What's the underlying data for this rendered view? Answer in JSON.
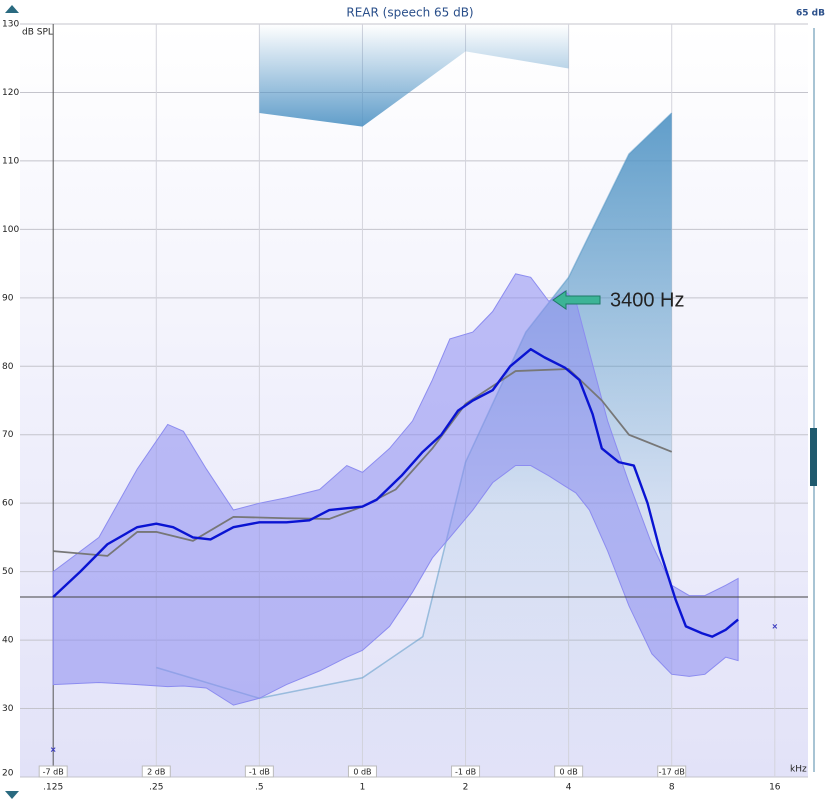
{
  "chart_data": {
    "type": "line",
    "title": "REAR (speech 65 dB)",
    "level_label": "65 dB",
    "y_label": "dB SPL",
    "x_label": "kHz",
    "log_x": true,
    "grid": true,
    "xlim": [
      0.1,
      20
    ],
    "xticks": [
      {
        "value": 0.125,
        "label": ".125"
      },
      {
        "value": 0.25,
        "label": ".25"
      },
      {
        "value": 0.5,
        "label": ".5"
      },
      1,
      2,
      4,
      8,
      16
    ],
    "ylim": [
      20,
      130
    ],
    "yticks": [
      20,
      30,
      40,
      50,
      60,
      70,
      80,
      90,
      100,
      110,
      120,
      130
    ],
    "gain_labels": [
      "-7 dB",
      "2 dB",
      "-1 dB",
      "0 dB",
      "-1 dB",
      "0 dB",
      "-17 dB"
    ],
    "band": {
      "color": "#8c8cf0",
      "x": [
        0.125,
        0.17,
        0.22,
        0.27,
        0.3,
        0.35,
        0.42,
        0.5,
        0.6,
        0.75,
        0.9,
        1,
        1.2,
        1.4,
        1.6,
        1.8,
        2.1,
        2.4,
        2.8,
        3.1,
        3.5,
        3.9,
        4.2,
        4.6,
        5.2,
        6,
        7,
        8,
        9,
        10,
        11.5,
        12.5
      ],
      "upper": [
        50,
        55,
        65,
        71.5,
        70.5,
        65,
        59,
        60,
        60.8,
        62,
        65.5,
        64.5,
        68,
        72,
        78,
        84,
        85,
        88,
        93.5,
        93,
        89.5,
        91,
        89.5,
        82,
        72,
        63,
        54,
        48,
        46.5,
        46.5,
        48,
        49
      ],
      "lower": [
        33.5,
        33.8,
        33.5,
        33.2,
        33.3,
        33,
        30.5,
        31.5,
        33.5,
        35.5,
        37.5,
        38.5,
        42,
        47,
        52,
        55,
        59,
        63,
        65.5,
        65.5,
        64,
        62.5,
        61.5,
        59,
        53,
        45,
        38,
        35,
        34.7,
        35,
        37.5,
        37
      ]
    },
    "threshold": {
      "color": "#4f93c4",
      "x": [
        0.25,
        0.5,
        1,
        1.5,
        2,
        3,
        4,
        6,
        8
      ],
      "values": [
        36,
        31.5,
        34.5,
        40.5,
        66,
        85,
        93,
        111,
        117
      ]
    },
    "ucl": {
      "color": "#4f93c4",
      "x": [
        0.5,
        1,
        2,
        4
      ],
      "values": [
        117,
        115,
        126,
        123.5
      ]
    },
    "series": [
      {
        "color": "#777777",
        "x": [
          0.125,
          0.18,
          0.22,
          0.25,
          0.32,
          0.42,
          0.6,
          0.8,
          1,
          1.25,
          1.6,
          2,
          2.8,
          4,
          5,
          6,
          8
        ],
        "values": [
          53,
          52.3,
          55.8,
          55.8,
          54.5,
          58,
          57.8,
          57.7,
          59.5,
          62,
          68,
          74.5,
          79.3,
          79.6,
          75,
          70,
          67.5
        ]
      },
      {
        "color": "#0a14d2",
        "x": [
          0.125,
          0.15,
          0.18,
          0.22,
          0.25,
          0.28,
          0.32,
          0.36,
          0.42,
          0.5,
          0.6,
          0.7,
          0.8,
          1,
          1.1,
          1.3,
          1.5,
          1.7,
          1.9,
          2.1,
          2.4,
          2.7,
          3.1,
          3.4,
          3.9,
          4.3,
          4.7,
          5,
          5.6,
          6.2,
          6.8,
          7.4,
          8.2,
          8.8,
          9.8,
          10.5,
          11.5,
          12.5
        ],
        "values": [
          46.3,
          50,
          54,
          56.5,
          57,
          56.5,
          55,
          54.7,
          56.5,
          57.2,
          57.2,
          57.5,
          59,
          59.5,
          60.5,
          64,
          67.5,
          70,
          73.5,
          75,
          76.5,
          80,
          82.5,
          81.3,
          79.8,
          78,
          73,
          68,
          66,
          65.5,
          60,
          53,
          46,
          42,
          41,
          40.5,
          41.5,
          43
        ]
      }
    ],
    "reference_line": 46.3,
    "markers": {
      "x": [
        0.125,
        16
      ],
      "values": [
        24,
        42
      ]
    },
    "annotation": "3400 Hz"
  }
}
